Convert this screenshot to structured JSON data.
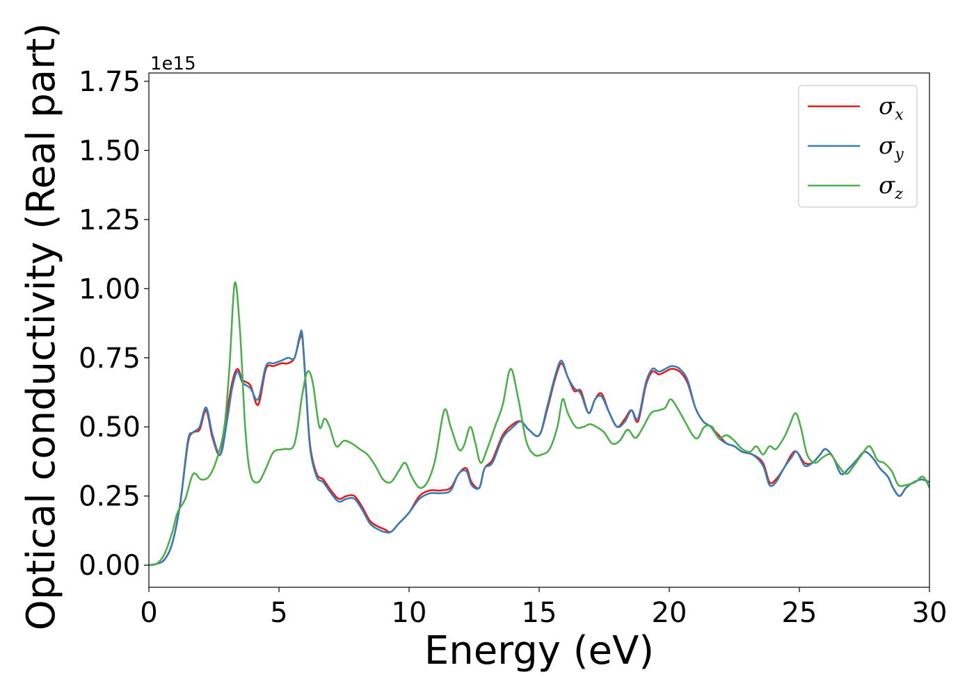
{
  "chart_data": {
    "type": "line",
    "title": "",
    "xlabel": "Energy (eV)",
    "ylabel": "Optical conductivity (Real part)",
    "y_offset_label": "1e15",
    "xlim": [
      0,
      30
    ],
    "ylim": [
      -0.08,
      1.78
    ],
    "xticks": [
      0,
      5,
      10,
      15,
      20,
      25,
      30
    ],
    "xtick_labels": [
      "0",
      "5",
      "10",
      "15",
      "20",
      "25",
      "30"
    ],
    "yticks": [
      0.0,
      0.25,
      0.5,
      0.75,
      1.0,
      1.25,
      1.5,
      1.75
    ],
    "ytick_labels": [
      "0.00",
      "0.25",
      "0.50",
      "0.75",
      "1.00",
      "1.25",
      "1.50",
      "1.75"
    ],
    "grid": false,
    "legend_position": "top-right",
    "series": [
      {
        "legend_symbol": "σ",
        "legend_sub": "x",
        "color": "#e41a1c",
        "x": [
          0,
          0.3,
          0.6,
          0.9,
          1.2,
          1.5,
          1.7,
          1.95,
          2.2,
          2.45,
          2.75,
          3.0,
          3.2,
          3.4,
          3.6,
          3.9,
          4.2,
          4.5,
          4.8,
          5.1,
          5.35,
          5.6,
          5.8,
          5.9,
          6.05,
          6.2,
          6.45,
          6.7,
          7.0,
          7.3,
          7.6,
          7.9,
          8.2,
          8.5,
          8.8,
          9.05,
          9.3,
          9.6,
          10.0,
          10.4,
          10.8,
          11.2,
          11.6,
          11.9,
          12.2,
          12.4,
          12.7,
          12.9,
          13.2,
          13.6,
          14.0,
          14.3,
          14.6,
          15.0,
          15.3,
          15.6,
          15.85,
          16.1,
          16.35,
          16.6,
          16.9,
          17.15,
          17.4,
          17.7,
          18.0,
          18.3,
          18.55,
          18.8,
          19.1,
          19.35,
          19.6,
          19.85,
          20.1,
          20.4,
          20.7,
          21.0,
          21.3,
          21.6,
          21.9,
          22.2,
          22.5,
          22.8,
          23.2,
          23.6,
          23.85,
          24.1,
          24.4,
          24.7,
          24.9,
          25.2,
          25.5,
          25.8,
          26.0,
          26.3,
          26.6,
          26.9,
          27.2,
          27.5,
          27.8,
          28.1,
          28.4,
          28.6,
          28.85,
          29.1,
          29.4,
          29.7,
          30.0
        ],
        "y": [
          0,
          0.005,
          0.02,
          0.08,
          0.22,
          0.44,
          0.48,
          0.49,
          0.56,
          0.46,
          0.4,
          0.55,
          0.66,
          0.71,
          0.67,
          0.65,
          0.58,
          0.71,
          0.72,
          0.73,
          0.73,
          0.75,
          0.82,
          0.82,
          0.62,
          0.43,
          0.33,
          0.31,
          0.27,
          0.24,
          0.25,
          0.25,
          0.21,
          0.16,
          0.14,
          0.13,
          0.12,
          0.15,
          0.19,
          0.25,
          0.27,
          0.27,
          0.28,
          0.33,
          0.35,
          0.3,
          0.28,
          0.35,
          0.38,
          0.47,
          0.51,
          0.52,
          0.49,
          0.47,
          0.56,
          0.67,
          0.73,
          0.68,
          0.63,
          0.63,
          0.55,
          0.6,
          0.62,
          0.55,
          0.5,
          0.53,
          0.56,
          0.52,
          0.65,
          0.7,
          0.69,
          0.7,
          0.71,
          0.7,
          0.66,
          0.57,
          0.52,
          0.5,
          0.47,
          0.44,
          0.43,
          0.41,
          0.4,
          0.37,
          0.3,
          0.31,
          0.35,
          0.4,
          0.41,
          0.37,
          0.37,
          0.4,
          0.42,
          0.39,
          0.33,
          0.35,
          0.38,
          0.41,
          0.39,
          0.35,
          0.32,
          0.28,
          0.25,
          0.28,
          0.3,
          0.31,
          0.3
        ]
      },
      {
        "legend_symbol": "σ",
        "legend_sub": "y",
        "color": "#377eb8",
        "x": [
          0,
          0.3,
          0.6,
          0.9,
          1.2,
          1.5,
          1.7,
          1.95,
          2.2,
          2.45,
          2.75,
          3.0,
          3.2,
          3.4,
          3.6,
          3.9,
          4.2,
          4.5,
          4.8,
          5.1,
          5.35,
          5.6,
          5.8,
          5.9,
          6.05,
          6.2,
          6.45,
          6.7,
          7.0,
          7.3,
          7.6,
          7.9,
          8.2,
          8.5,
          8.8,
          9.05,
          9.3,
          9.6,
          10.0,
          10.4,
          10.8,
          11.2,
          11.6,
          11.9,
          12.2,
          12.4,
          12.7,
          12.9,
          13.2,
          13.6,
          14.0,
          14.3,
          14.6,
          15.0,
          15.3,
          15.6,
          15.85,
          16.1,
          16.35,
          16.6,
          16.9,
          17.15,
          17.4,
          17.7,
          18.0,
          18.3,
          18.55,
          18.8,
          19.1,
          19.35,
          19.6,
          19.85,
          20.1,
          20.4,
          20.7,
          21.0,
          21.3,
          21.6,
          21.9,
          22.2,
          22.5,
          22.8,
          23.2,
          23.6,
          23.85,
          24.1,
          24.4,
          24.7,
          24.9,
          25.2,
          25.5,
          25.8,
          26.0,
          26.3,
          26.6,
          26.9,
          27.2,
          27.5,
          27.8,
          28.1,
          28.4,
          28.6,
          28.85,
          29.1,
          29.4,
          29.7,
          30.0
        ],
        "y": [
          0,
          0.005,
          0.02,
          0.08,
          0.22,
          0.45,
          0.48,
          0.5,
          0.57,
          0.47,
          0.4,
          0.52,
          0.64,
          0.7,
          0.66,
          0.64,
          0.6,
          0.72,
          0.73,
          0.74,
          0.75,
          0.75,
          0.83,
          0.83,
          0.62,
          0.42,
          0.32,
          0.3,
          0.26,
          0.23,
          0.24,
          0.24,
          0.2,
          0.15,
          0.13,
          0.12,
          0.12,
          0.15,
          0.19,
          0.24,
          0.26,
          0.26,
          0.27,
          0.33,
          0.34,
          0.29,
          0.28,
          0.35,
          0.37,
          0.46,
          0.5,
          0.52,
          0.49,
          0.47,
          0.57,
          0.68,
          0.74,
          0.68,
          0.64,
          0.62,
          0.55,
          0.6,
          0.61,
          0.55,
          0.5,
          0.52,
          0.56,
          0.53,
          0.66,
          0.71,
          0.7,
          0.71,
          0.72,
          0.71,
          0.67,
          0.57,
          0.52,
          0.5,
          0.46,
          0.44,
          0.43,
          0.41,
          0.4,
          0.36,
          0.29,
          0.3,
          0.35,
          0.39,
          0.41,
          0.36,
          0.37,
          0.4,
          0.42,
          0.39,
          0.33,
          0.35,
          0.38,
          0.41,
          0.39,
          0.35,
          0.32,
          0.28,
          0.25,
          0.28,
          0.3,
          0.31,
          0.3
        ]
      },
      {
        "legend_symbol": "σ",
        "legend_sub": "z",
        "color": "#4daf4a",
        "x": [
          0,
          0.3,
          0.6,
          0.9,
          1.1,
          1.4,
          1.7,
          2.0,
          2.3,
          2.6,
          2.9,
          3.1,
          3.3,
          3.5,
          3.7,
          3.9,
          4.2,
          4.5,
          4.8,
          5.2,
          5.6,
          5.9,
          6.1,
          6.3,
          6.55,
          6.75,
          6.95,
          7.2,
          7.5,
          7.8,
          8.1,
          8.4,
          8.7,
          9.0,
          9.3,
          9.6,
          9.85,
          10.1,
          10.4,
          10.7,
          11.0,
          11.35,
          11.6,
          11.9,
          12.1,
          12.35,
          12.55,
          12.75,
          13.0,
          13.3,
          13.6,
          13.9,
          14.2,
          14.5,
          14.8,
          15.1,
          15.4,
          15.7,
          15.9,
          16.1,
          16.4,
          16.7,
          16.95,
          17.2,
          17.5,
          17.8,
          18.1,
          18.4,
          18.7,
          19.0,
          19.3,
          19.6,
          19.85,
          20.05,
          20.3,
          20.6,
          20.9,
          21.1,
          21.35,
          21.65,
          21.9,
          22.2,
          22.5,
          22.8,
          23.1,
          23.35,
          23.6,
          23.85,
          24.1,
          24.4,
          24.6,
          24.85,
          25.05,
          25.3,
          25.6,
          25.9,
          26.2,
          26.5,
          26.8,
          27.1,
          27.4,
          27.7,
          28.0,
          28.25,
          28.55,
          28.8,
          29.1,
          29.45,
          29.75,
          30.0
        ],
        "y": [
          0,
          0.005,
          0.04,
          0.12,
          0.19,
          0.24,
          0.33,
          0.31,
          0.32,
          0.38,
          0.5,
          0.72,
          1.02,
          0.85,
          0.5,
          0.33,
          0.3,
          0.35,
          0.41,
          0.42,
          0.44,
          0.62,
          0.7,
          0.66,
          0.5,
          0.53,
          0.5,
          0.43,
          0.45,
          0.44,
          0.42,
          0.4,
          0.36,
          0.31,
          0.3,
          0.34,
          0.37,
          0.32,
          0.28,
          0.3,
          0.38,
          0.56,
          0.5,
          0.42,
          0.43,
          0.5,
          0.44,
          0.37,
          0.42,
          0.5,
          0.58,
          0.71,
          0.6,
          0.45,
          0.4,
          0.4,
          0.42,
          0.5,
          0.6,
          0.55,
          0.5,
          0.5,
          0.51,
          0.5,
          0.48,
          0.44,
          0.45,
          0.49,
          0.46,
          0.5,
          0.55,
          0.56,
          0.57,
          0.6,
          0.57,
          0.52,
          0.47,
          0.46,
          0.5,
          0.5,
          0.46,
          0.47,
          0.45,
          0.42,
          0.41,
          0.43,
          0.4,
          0.43,
          0.42,
          0.46,
          0.5,
          0.55,
          0.5,
          0.4,
          0.37,
          0.39,
          0.4,
          0.36,
          0.33,
          0.36,
          0.4,
          0.43,
          0.38,
          0.37,
          0.34,
          0.29,
          0.29,
          0.3,
          0.32,
          0.28
        ]
      }
    ]
  }
}
